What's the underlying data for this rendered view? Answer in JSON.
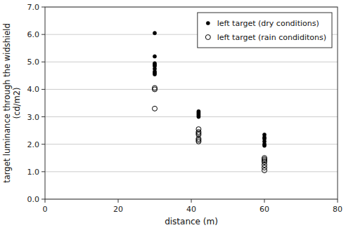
{
  "chart_data": {
    "type": "scatter",
    "xlabel": "distance (m)",
    "ylabel": "target luminance through the widshield\n(cd/m2)",
    "xlim": [
      0,
      80
    ],
    "ylim": [
      0.0,
      7.0
    ],
    "xticks": [
      0,
      20,
      40,
      60,
      80
    ],
    "yticks": [
      {
        "value": 0.0,
        "label": "0.0"
      },
      {
        "value": 1.0,
        "label": "1.0"
      },
      {
        "value": 2.0,
        "label": "2.0"
      },
      {
        "value": 3.0,
        "label": "3.0"
      },
      {
        "value": 4.0,
        "label": "4.0"
      },
      {
        "value": 5.0,
        "label": "5.0"
      },
      {
        "value": 6.0,
        "label": "6.0"
      },
      {
        "value": 7.0,
        "label": "7.0"
      }
    ],
    "grid": "y",
    "legend": "upper right",
    "series": [
      {
        "name": "left target (dry conditions)",
        "color": "black",
        "marker": "dot",
        "x": [
          30,
          30,
          30,
          30,
          30,
          30,
          30,
          30,
          30,
          42,
          42,
          42,
          42,
          42,
          60,
          60,
          60,
          60,
          60,
          60
        ],
        "values": [
          6.05,
          5.2,
          4.95,
          4.9,
          4.85,
          4.75,
          4.65,
          4.6,
          4.55,
          3.2,
          3.15,
          3.1,
          3.05,
          3.0,
          2.35,
          2.25,
          2.2,
          2.1,
          2.0,
          1.95
        ]
      },
      {
        "name": "left target (rain condiditons)",
        "color": "black",
        "marker": "open-circle",
        "x": [
          30,
          30,
          30,
          42,
          42,
          42,
          42,
          42,
          42,
          42,
          60,
          60,
          60,
          60,
          60,
          60,
          60
        ],
        "values": [
          4.05,
          4.0,
          3.3,
          2.55,
          2.45,
          2.4,
          2.35,
          2.2,
          2.15,
          2.1,
          1.5,
          1.45,
          1.4,
          1.35,
          1.25,
          1.15,
          1.05
        ]
      }
    ]
  }
}
